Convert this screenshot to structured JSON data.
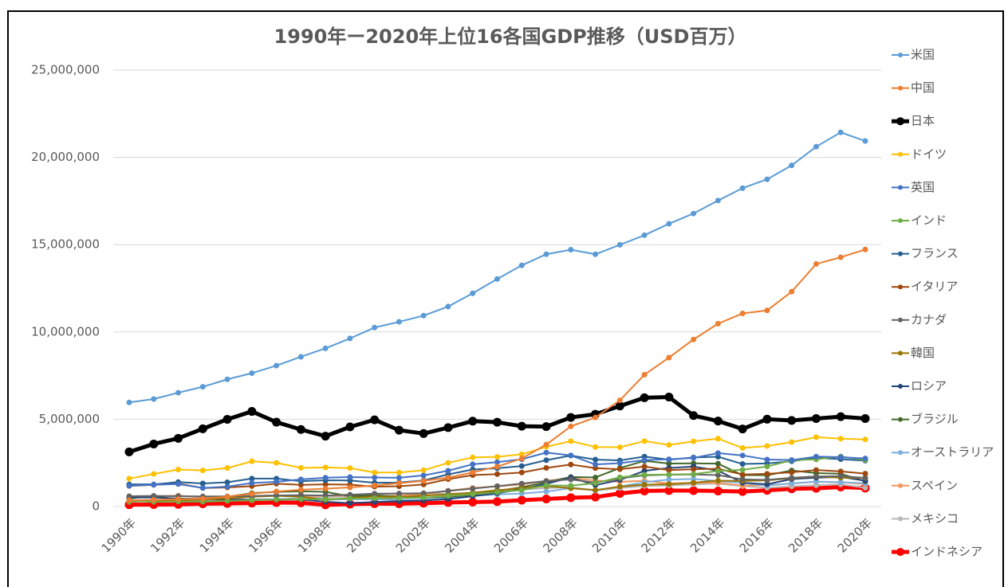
{
  "chart_data": {
    "type": "line",
    "title": "1990年ー2020年上位16各国GDP推移（USD百万）",
    "categories": [
      "1990年",
      null,
      "1992年",
      null,
      "1994年",
      null,
      "1996年",
      null,
      "1998年",
      null,
      "2000年",
      null,
      "2002年",
      null,
      "2004年",
      null,
      "2006年",
      null,
      "2008年",
      null,
      "2010年",
      null,
      "2012年",
      null,
      "2014年",
      null,
      "2016年",
      null,
      "2018年",
      null,
      "2020年"
    ],
    "ylim": [
      0,
      25000000
    ],
    "yticks": [
      0,
      {
        "value": 5000000,
        "label": "5,000,000"
      },
      {
        "value": 10000000,
        "label": "10,000,000"
      },
      {
        "value": 15000000,
        "label": "15,000,000"
      },
      {
        "value": 20000000,
        "label": "20,000,000"
      },
      {
        "value": 25000000,
        "label": "25,000,000"
      }
    ],
    "grid": true,
    "legend": "right",
    "series": [
      {
        "name": "米国",
        "color": "#5b9bd5",
        "values": [
          5963000,
          6158000,
          6520000,
          6859000,
          7287000,
          7640000,
          8073000,
          8578000,
          9063000,
          9631000,
          10252000,
          10582000,
          10936000,
          11458000,
          12214000,
          13037000,
          13815000,
          14452000,
          14713000,
          14449000,
          14992000,
          15543000,
          16197000,
          16785000,
          17527000,
          18238000,
          18745000,
          19543000,
          20612000,
          21433000,
          20937000
        ]
      },
      {
        "name": "中国",
        "color": "#ed7d31",
        "values": [
          361000,
          383000,
          427000,
          445000,
          564000,
          734000,
          864000,
          962000,
          1029000,
          1094000,
          1211000,
          1339000,
          1471000,
          1660000,
          1955000,
          2286000,
          2752000,
          3552000,
          4594000,
          5102000,
          6087000,
          7552000,
          8532000,
          9570000,
          10476000,
          11062000,
          11233000,
          12310000,
          13895000,
          14280000,
          14723000
        ]
      },
      {
        "name": "日本",
        "color": "#000000",
        "bold": true,
        "values": [
          3133000,
          3584000,
          3909000,
          4454000,
          4998000,
          5449000,
          4833000,
          4414000,
          4032000,
          4562000,
          4968000,
          4374000,
          4183000,
          4520000,
          4894000,
          4831000,
          4601000,
          4579000,
          5106000,
          5289000,
          5759000,
          6233000,
          6272000,
          5212000,
          4897000,
          4445000,
          5004000,
          4931000,
          5041000,
          5148000,
          5040000
        ]
      },
      {
        "name": "ドイツ",
        "color": "#ffc000",
        "values": [
          1599000,
          1868000,
          2121000,
          2072000,
          2206000,
          2592000,
          2504000,
          2218000,
          2243000,
          2200000,
          1950000,
          1951000,
          2079000,
          2506000,
          2815000,
          2846000,
          2993000,
          3425000,
          3745000,
          3412000,
          3400000,
          3749000,
          3528000,
          3733000,
          3890000,
          3357000,
          3469000,
          3690000,
          3975000,
          3889000,
          3846000
        ]
      },
      {
        "name": "英国",
        "color": "#4472c4",
        "values": [
          1193000,
          1250000,
          1290000,
          1065000,
          1140000,
          1344000,
          1418000,
          1558000,
          1652000,
          1687000,
          1665000,
          1650000,
          1785000,
          2054000,
          2422000,
          2543000,
          2708000,
          3090000,
          2929000,
          2412000,
          2485000,
          2664000,
          2707000,
          2785000,
          3064000,
          2928000,
          2694000,
          2666000,
          2860000,
          2831000,
          2757000
        ]
      },
      {
        "name": "インド",
        "color": "#70ad47",
        "values": [
          321000,
          270000,
          288000,
          279000,
          327000,
          360000,
          392000,
          415000,
          421000,
          458000,
          468000,
          485000,
          515000,
          608000,
          709000,
          820000,
          940000,
          1217000,
          1199000,
          1342000,
          1676000,
          1823000,
          1828000,
          1857000,
          2039000,
          2104000,
          2295000,
          2651000,
          2703000,
          2871000,
          2660000
        ]
      },
      {
        "name": "フランス",
        "color": "#255e91",
        "values": [
          1269000,
          1269000,
          1401000,
          1322000,
          1393000,
          1601000,
          1605000,
          1452000,
          1503000,
          1492000,
          1362000,
          1377000,
          1494000,
          1841000,
          2120000,
          2197000,
          2321000,
          2657000,
          2918000,
          2690000,
          2643000,
          2861000,
          2684000,
          2811000,
          2853000,
          2439000,
          2472000,
          2595000,
          2788000,
          2716000,
          2630000
        ]
      },
      {
        "name": "イタリア",
        "color": "#9e480e",
        "values": [
          1178000,
          1242000,
          1316000,
          1062000,
          1097000,
          1171000,
          1313000,
          1241000,
          1270000,
          1253000,
          1143000,
          1163000,
          1267000,
          1570000,
          1802000,
          1858000,
          1949000,
          2214000,
          2408000,
          2199000,
          2136000,
          2294000,
          2087000,
          2141000,
          2162000,
          1836000,
          1877000,
          1961000,
          2092000,
          2011000,
          1888000
        ]
      },
      {
        "name": "カナダ",
        "color": "#636363",
        "values": [
          594000,
          612000,
          594000,
          579000,
          579000,
          605000,
          631000,
          654000,
          634000,
          678000,
          744000,
          739000,
          760000,
          895000,
          1026000,
          1169000,
          1315000,
          1465000,
          1549000,
          1371000,
          1613000,
          1789000,
          1824000,
          1843000,
          1802000,
          1556000,
          1528000,
          1650000,
          1725000,
          1742000,
          1644000
        ]
      },
      {
        "name": "韓国",
        "color": "#997300",
        "values": [
          283000,
          330000,
          356000,
          392000,
          463000,
          566000,
          610000,
          570000,
          383000,
          497000,
          576000,
          548000,
          627000,
          703000,
          793000,
          935000,
          1053000,
          1173000,
          1047000,
          944000,
          1144000,
          1253000,
          1278000,
          1370000,
          1484000,
          1466000,
          1500000,
          1624000,
          1725000,
          1651000,
          1638000
        ]
      },
      {
        "name": "ロシア",
        "color": "#264478",
        "values": [
          517000,
          518000,
          460000,
          435000,
          395000,
          395000,
          392000,
          405000,
          271000,
          196000,
          260000,
          307000,
          345000,
          430000,
          591000,
          764000,
          990000,
          1300000,
          1661000,
          1223000,
          1525000,
          2046000,
          2208000,
          2292000,
          2059000,
          1363000,
          1277000,
          1575000,
          1653000,
          1693000,
          1483000
        ]
      },
      {
        "name": "ブラジル",
        "color": "#43682b",
        "values": [
          462000,
          602000,
          400000,
          437000,
          558000,
          769000,
          840000,
          871000,
          843000,
          587000,
          655000,
          559000,
          508000,
          558000,
          669000,
          892000,
          1107000,
          1397000,
          1696000,
          1667000,
          2209000,
          2616000,
          2465000,
          2473000,
          2456000,
          1802000,
          1796000,
          2064000,
          1917000,
          1878000,
          1445000
        ]
      },
      {
        "name": "オーストラリア",
        "color": "#7cafdd",
        "values": [
          323000,
          330000,
          326000,
          312000,
          354000,
          381000,
          424000,
          441000,
          398000,
          416000,
          415000,
          379000,
          396000,
          467000,
          612000,
          693000,
          747000,
          853000,
          1055000,
          928000,
          1147000,
          1397000,
          1547000,
          1577000,
          1468000,
          1351000,
          1208000,
          1327000,
          1429000,
          1397000,
          1331000
        ]
      },
      {
        "name": "スペイン",
        "color": "#f1975a",
        "values": [
          536000,
          576000,
          630000,
          525000,
          529000,
          612000,
          642000,
          590000,
          619000,
          635000,
          597000,
          627000,
          708000,
          906000,
          1069000,
          1157000,
          1260000,
          1474000,
          1631000,
          1491000,
          1422000,
          1479000,
          1325000,
          1356000,
          1371000,
          1196000,
          1232000,
          1312000,
          1421000,
          1394000,
          1281000
        ]
      },
      {
        "name": "メキシコ",
        "color": "#b7b7b7",
        "values": [
          261000,
          313000,
          363000,
          500000,
          527000,
          360000,
          411000,
          500000,
          526000,
          600000,
          708000,
          756000,
          772000,
          729000,
          782000,
          877000,
          975000,
          1053000,
          1110000,
          917000,
          1058000,
          1180000,
          1201000,
          1274000,
          1315000,
          1171000,
          1078000,
          1159000,
          1222000,
          1269000,
          1076000
        ]
      },
      {
        "name": "インドネシア",
        "color": "#ff0000",
        "bold": true,
        "values": [
          106000,
          116000,
          128000,
          158000,
          177000,
          202000,
          227000,
          215000,
          95000,
          140000,
          165000,
          160000,
          196000,
          235000,
          257000,
          286000,
          365000,
          432000,
          510000,
          540000,
          755000,
          893000,
          918000,
          913000,
          891000,
          861000,
          932000,
          1016000,
          1042000,
          1119000,
          1058000
        ]
      }
    ]
  }
}
